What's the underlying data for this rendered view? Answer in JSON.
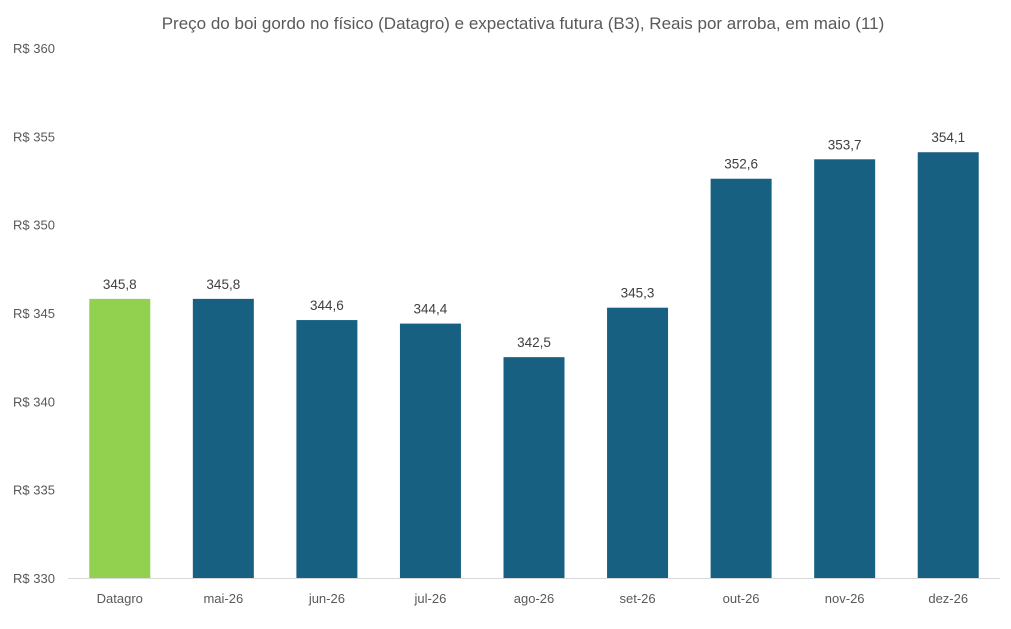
{
  "chart_data": {
    "type": "bar",
    "title": "Preço do boi gordo no físico (Datagro)  e expectativa futura (B3), Reais por arroba, em maio (11)",
    "categories": [
      "Datagro",
      "mai-26",
      "jun-26",
      "jul-26",
      "ago-26",
      "set-26",
      "out-26",
      "nov-26",
      "dez-26"
    ],
    "values": [
      345.8,
      345.8,
      344.6,
      344.4,
      342.5,
      345.3,
      352.6,
      353.7,
      354.1
    ],
    "value_labels": [
      "345,8",
      "345,8",
      "344,6",
      "344,4",
      "342,5",
      "345,3",
      "352,6",
      "353,7",
      "354,1"
    ],
    "ylim": [
      330,
      360
    ],
    "yticks": [
      330,
      335,
      340,
      345,
      350,
      355,
      360
    ],
    "ytick_labels": [
      "R$ 330",
      "R$ 335",
      "R$ 340",
      "R$ 345",
      "R$ 350",
      "R$ 355",
      "R$ 360"
    ],
    "xlabel": "",
    "ylabel": "",
    "grid": false,
    "legend": "none",
    "colors": {
      "highlight": "#92d050",
      "bar": "#176082",
      "axis": "#d9d9d9"
    },
    "highlight_category": "Datagro"
  }
}
